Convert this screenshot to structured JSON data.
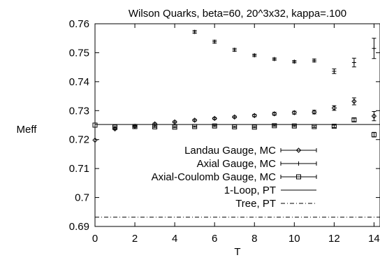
{
  "chart_data": {
    "type": "scatter",
    "title": "Wilson Quarks, beta=60, 20^3x32, kappa=.100",
    "xlabel": "T",
    "ylabel": "Meff",
    "xlim": [
      0,
      14.3
    ],
    "ylim": [
      0.69,
      0.76
    ],
    "xticks": [
      "0",
      "2",
      "4",
      "6",
      "8",
      "10",
      "12",
      "14"
    ],
    "yticks": [
      "0.69",
      "0.7",
      "0.71",
      "0.72",
      "0.73",
      "0.74",
      "0.75",
      "0.76"
    ],
    "grid": false,
    "legend_position": "center-right",
    "series": [
      {
        "name": "Landau Gauge, MC",
        "marker": "diamond",
        "x": [
          0,
          1,
          2,
          3,
          4,
          5,
          6,
          7,
          8,
          9,
          10,
          11,
          12,
          13,
          14
        ],
        "y": [
          0.7198,
          0.7237,
          0.7246,
          0.7254,
          0.7261,
          0.7267,
          0.7273,
          0.7278,
          0.7283,
          0.7289,
          0.7293,
          0.7295,
          0.7309,
          0.7332,
          0.7281
        ],
        "err": [
          0,
          0.0003,
          0.0003,
          0.0003,
          0.0003,
          0.0003,
          0.0003,
          0.0003,
          0.0004,
          0.0005,
          0.0005,
          0.0006,
          0.0008,
          0.0012,
          0.0016
        ]
      },
      {
        "name": "Axial Gauge, MC",
        "marker": "plus",
        "x": [
          5,
          6,
          7,
          8,
          9,
          10,
          11,
          12,
          13,
          14
        ],
        "y": [
          0.7572,
          0.7538,
          0.751,
          0.7491,
          0.7478,
          0.7469,
          0.7473,
          0.7436,
          0.7466,
          0.7515
        ],
        "err": [
          0.0005,
          0.0005,
          0.0005,
          0.0004,
          0.0004,
          0.0004,
          0.0005,
          0.0008,
          0.0015,
          0.0035
        ]
      },
      {
        "name": "Axial-Coulomb Gauge, MC",
        "marker": "square",
        "x": [
          0,
          1,
          2,
          3,
          4,
          5,
          6,
          7,
          8,
          9,
          10,
          11,
          12,
          13,
          14
        ],
        "y": [
          0.725,
          0.7243,
          0.7245,
          0.7244,
          0.7243,
          0.7245,
          0.7247,
          0.7244,
          0.7243,
          0.7248,
          0.7247,
          0.7245,
          0.7246,
          0.7268,
          0.7217
        ],
        "err": [
          0,
          0.0002,
          0.0002,
          0.0002,
          0.0002,
          0.0002,
          0.0002,
          0.0002,
          0.0002,
          0.0002,
          0.0002,
          0.0003,
          0.0004,
          0.0006,
          0.0008
        ]
      },
      {
        "name": "1-Loop, PT",
        "line_style": "solid",
        "value": 0.7252
      },
      {
        "name": "Tree, PT",
        "line_style": "dash-dot",
        "value": 0.6932
      }
    ]
  }
}
